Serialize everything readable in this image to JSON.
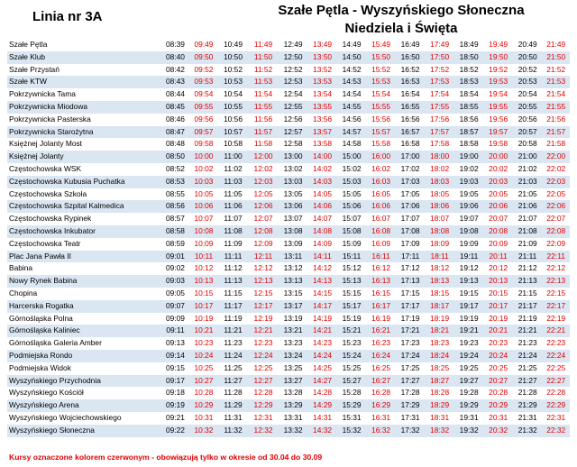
{
  "header": {
    "line": "Linia nr 3A",
    "route": "Szałe Pętla - Wyszyńskiego Słoneczna",
    "days": "Niedziela i Święta"
  },
  "colors": {
    "seasonal": "#e00000",
    "row_shade": "#dbe6f3"
  },
  "columns": [
    "b",
    "r",
    "b",
    "r",
    "b",
    "r",
    "b",
    "r",
    "b",
    "r",
    "b",
    "r",
    "b",
    "r",
    "b",
    "r",
    "b",
    "r"
  ],
  "rows": [
    {
      "stop": "Szałe Pętla",
      "times": [
        "08:39",
        "09:49",
        "10:49",
        "11:49",
        "12:49",
        "13:49",
        "14:49",
        "15:49",
        "16:49",
        "17:49",
        "18:49",
        "19:49",
        "20:49",
        "21:49",
        "",
        "",
        "",
        ""
      ]
    },
    {
      "stop": "Szałe Klub",
      "times": [
        "08:40",
        "09:50",
        "10:50",
        "11:50",
        "12:50",
        "13:50",
        "14:50",
        "15:50",
        "16:50",
        "17:50",
        "18:50",
        "19:50",
        "20:50",
        "21:50",
        "",
        "",
        "",
        ""
      ]
    },
    {
      "stop": "Szałe Przystań",
      "times": [
        "08:42",
        "09:52",
        "10:52",
        "11:52",
        "12:52",
        "13:52",
        "14:52",
        "15:52",
        "16:52",
        "17:52",
        "18:52",
        "19:52",
        "20:52",
        "21:52",
        "",
        "",
        "",
        ""
      ]
    },
    {
      "stop": "Szałe KTW",
      "times": [
        "08:43",
        "09:53",
        "10:53",
        "11:53",
        "12:53",
        "13:53",
        "14:53",
        "15:53",
        "16:53",
        "17:53",
        "18:53",
        "19:53",
        "20:53",
        "21:53",
        "",
        "",
        "",
        ""
      ]
    },
    {
      "stop": "Pokrzywnicka Tama",
      "times": [
        "08:44",
        "09:54",
        "10:54",
        "11:54",
        "12:54",
        "13:54",
        "14:54",
        "15:54",
        "16:54",
        "17:54",
        "18:54",
        "19:54",
        "20:54",
        "21:54",
        "",
        "",
        "",
        ""
      ]
    },
    {
      "stop": "Pokrzywnicka Miodowa",
      "times": [
        "08:45",
        "09:55",
        "10:55",
        "11:55",
        "12:55",
        "13:55",
        "14:55",
        "15:55",
        "16:55",
        "17:55",
        "18:55",
        "19:55",
        "20:55",
        "21:55",
        "",
        "",
        "",
        ""
      ]
    },
    {
      "stop": "Pokrzywnicka Pasterska",
      "times": [
        "08:46",
        "09:56",
        "10:56",
        "11:56",
        "12:56",
        "13:56",
        "14:56",
        "15:56",
        "16:56",
        "17:56",
        "18:56",
        "19:56",
        "20:56",
        "21:56",
        "",
        "",
        "",
        ""
      ]
    },
    {
      "stop": "Pokrzywnicka Starożytna",
      "times": [
        "08:47",
        "09:57",
        "10:57",
        "11:57",
        "12:57",
        "13:57",
        "14:57",
        "15:57",
        "16:57",
        "17:57",
        "18:57",
        "19:57",
        "20:57",
        "21:57",
        "",
        "",
        "",
        ""
      ]
    },
    {
      "stop": "Księżnej Jolanty Most",
      "times": [
        "08:48",
        "09:58",
        "10:58",
        "11:58",
        "12:58",
        "13:58",
        "14:58",
        "15:58",
        "16:58",
        "17:58",
        "18:58",
        "19:58",
        "20:58",
        "21:58",
        "",
        "",
        "",
        ""
      ]
    },
    {
      "stop": "Księżnej Jolanty",
      "times": [
        "08:50",
        "10:00",
        "11:00",
        "12:00",
        "13:00",
        "14:00",
        "15:00",
        "16:00",
        "17:00",
        "18:00",
        "19:00",
        "20:00",
        "21:00",
        "22:00",
        "",
        "",
        "",
        ""
      ]
    },
    {
      "stop": "Częstochowska WSK",
      "times": [
        "08:52",
        "10:02",
        "11:02",
        "12:02",
        "13:02",
        "14:02",
        "15:02",
        "16:02",
        "17:02",
        "18:02",
        "19:02",
        "20:02",
        "21:02",
        "22:02",
        "",
        "",
        "",
        ""
      ]
    },
    {
      "stop": "Częstochowska Kubusia Puchatka",
      "times": [
        "08:53",
        "10:03",
        "11:03",
        "12:03",
        "13:03",
        "14:03",
        "15:03",
        "16:03",
        "17:03",
        "18:03",
        "19:03",
        "20:03",
        "21:03",
        "22:03",
        "",
        "",
        "",
        ""
      ]
    },
    {
      "stop": "Częstochowska Szkoła",
      "times": [
        "08:55",
        "10:05",
        "11:05",
        "12:05",
        "13:05",
        "14:05",
        "15:05",
        "16:05",
        "17:05",
        "18:05",
        "19:05",
        "20:05",
        "21:05",
        "22:05",
        "",
        "",
        "",
        ""
      ]
    },
    {
      "stop": "Częstochowska Szpital Kalmedica",
      "times": [
        "08:56",
        "10:06",
        "11:06",
        "12:06",
        "13:06",
        "14:06",
        "15:06",
        "16:06",
        "17:06",
        "18:06",
        "19:06",
        "20:06",
        "21:06",
        "22:06",
        "",
        "",
        "",
        ""
      ]
    },
    {
      "stop": "Częstochowska Rypinek",
      "times": [
        "08:57",
        "10:07",
        "11:07",
        "12:07",
        "13:07",
        "14:07",
        "15:07",
        "16:07",
        "17:07",
        "18:07",
        "19:07",
        "20:07",
        "21:07",
        "22:07",
        "",
        "",
        "",
        ""
      ]
    },
    {
      "stop": "Częstochowska Inkubator",
      "times": [
        "08:58",
        "10:08",
        "11:08",
        "12:08",
        "13:08",
        "14:08",
        "15:08",
        "16:08",
        "17:08",
        "18:08",
        "19:08",
        "20:08",
        "21:08",
        "22:08",
        "",
        "",
        "",
        ""
      ]
    },
    {
      "stop": "Częstochowska Teatr",
      "times": [
        "08:59",
        "10:09",
        "11:09",
        "12:09",
        "13:09",
        "14:09",
        "15:09",
        "16:09",
        "17:09",
        "18:09",
        "19:09",
        "20:09",
        "21:09",
        "22:09",
        "",
        "",
        "",
        ""
      ]
    },
    {
      "stop": "Plac Jana Pawła II",
      "times": [
        "09:01",
        "10:11",
        "11:11",
        "12:11",
        "13:11",
        "14:11",
        "15:11",
        "16:11",
        "17:11",
        "18:11",
        "19:11",
        "20:11",
        "21:11",
        "22:11",
        "",
        "",
        "",
        ""
      ]
    },
    {
      "stop": "Babina",
      "times": [
        "09:02",
        "10:12",
        "11:12",
        "12:12",
        "13:12",
        "14:12",
        "15:12",
        "16:12",
        "17:12",
        "18:12",
        "19:12",
        "20:12",
        "21:12",
        "22:12",
        "",
        "",
        "",
        ""
      ]
    },
    {
      "stop": "Nowy Rynek Babina",
      "times": [
        "09:03",
        "10:13",
        "11:13",
        "12:13",
        "13:13",
        "14:13",
        "15:13",
        "16:13",
        "17:13",
        "18:13",
        "19:13",
        "20:13",
        "21:13",
        "22:13",
        "",
        "",
        "",
        ""
      ]
    },
    {
      "stop": "Chopina",
      "times": [
        "09:05",
        "10:15",
        "11:15",
        "12:15",
        "13:15",
        "14:15",
        "15:15",
        "16:15",
        "17:15",
        "18:15",
        "19:15",
        "20:15",
        "21:15",
        "22:15",
        "",
        "",
        "",
        ""
      ]
    },
    {
      "stop": "Harcerska Rogatka",
      "times": [
        "09:07",
        "10:17",
        "11:17",
        "12:17",
        "13:17",
        "14:17",
        "15:17",
        "16:17",
        "17:17",
        "18:17",
        "19:17",
        "20:17",
        "21:17",
        "22:17",
        "",
        "",
        "",
        ""
      ]
    },
    {
      "stop": "Górnośląska Polna",
      "times": [
        "09:09",
        "10:19",
        "11:19",
        "12:19",
        "13:19",
        "14:19",
        "15:19",
        "16:19",
        "17:19",
        "18:19",
        "19:19",
        "20:19",
        "21:19",
        "22:19",
        "",
        "",
        "",
        ""
      ]
    },
    {
      "stop": "Górnośląska Kaliniec",
      "times": [
        "09:11",
        "10:21",
        "11:21",
        "12:21",
        "13:21",
        "14:21",
        "15:21",
        "16:21",
        "17:21",
        "18:21",
        "19:21",
        "20:21",
        "21:21",
        "22:21",
        "",
        "",
        "",
        ""
      ]
    },
    {
      "stop": "Górnośląska Galeria Amber",
      "times": [
        "09:13",
        "10:23",
        "11:23",
        "12:23",
        "13:23",
        "14:23",
        "15:23",
        "16:23",
        "17:23",
        "18:23",
        "19:23",
        "20:23",
        "21:23",
        "22:23",
        "",
        "",
        "",
        ""
      ]
    },
    {
      "stop": "Podmiejska Rondo",
      "times": [
        "09:14",
        "10:24",
        "11:24",
        "12:24",
        "13:24",
        "14:24",
        "15:24",
        "16:24",
        "17:24",
        "18:24",
        "19:24",
        "20:24",
        "21:24",
        "22:24",
        "",
        "",
        "",
        ""
      ]
    },
    {
      "stop": "Podmiejska Widok",
      "times": [
        "09:15",
        "10:25",
        "11:25",
        "12:25",
        "13:25",
        "14:25",
        "15:25",
        "16:25",
        "17:25",
        "18:25",
        "19:25",
        "20:25",
        "21:25",
        "22:25",
        "",
        "",
        "",
        ""
      ]
    },
    {
      "stop": "Wyszyńskiego Przychodnia",
      "times": [
        "09:17",
        "10:27",
        "11:27",
        "12:27",
        "13:27",
        "14:27",
        "15:27",
        "16:27",
        "17:27",
        "18:27",
        "19:27",
        "20:27",
        "21:27",
        "22:27",
        "",
        "",
        "",
        ""
      ]
    },
    {
      "stop": "Wyszyńskiego Kościół",
      "times": [
        "09:18",
        "10:28",
        "11:28",
        "12:28",
        "13:28",
        "14:28",
        "15:28",
        "16:28",
        "17:28",
        "18:28",
        "19:28",
        "20:28",
        "21:28",
        "22:28",
        "",
        "",
        "",
        ""
      ]
    },
    {
      "stop": "Wyszyńskiego Arena",
      "times": [
        "09:19",
        "10:29",
        "11:29",
        "12:29",
        "13:29",
        "14:29",
        "15:29",
        "16:29",
        "17:29",
        "18:29",
        "19:29",
        "20:29",
        "21:29",
        "22:29",
        "",
        "",
        "",
        ""
      ]
    },
    {
      "stop": "Wyszyńskiego Wojciechowskiego",
      "times": [
        "09:21",
        "10:31",
        "11:31",
        "12:31",
        "13:31",
        "14:31",
        "15:31",
        "16:31",
        "17:31",
        "18:31",
        "19:31",
        "20:31",
        "21:31",
        "22:31",
        "",
        "",
        "",
        ""
      ]
    },
    {
      "stop": "Wyszyńskiego Słoneczna",
      "times": [
        "09:22",
        "10:32",
        "11:32",
        "12:32",
        "13:32",
        "14:32",
        "15:32",
        "16:32",
        "17:32",
        "18:32",
        "19:32",
        "20:32",
        "21:32",
        "22:32",
        "",
        "",
        "",
        ""
      ]
    }
  ],
  "footnote": "Kursy oznaczone kolorem czerwonym - obowiązują tylko w okresie od 30.04 do 30.09"
}
